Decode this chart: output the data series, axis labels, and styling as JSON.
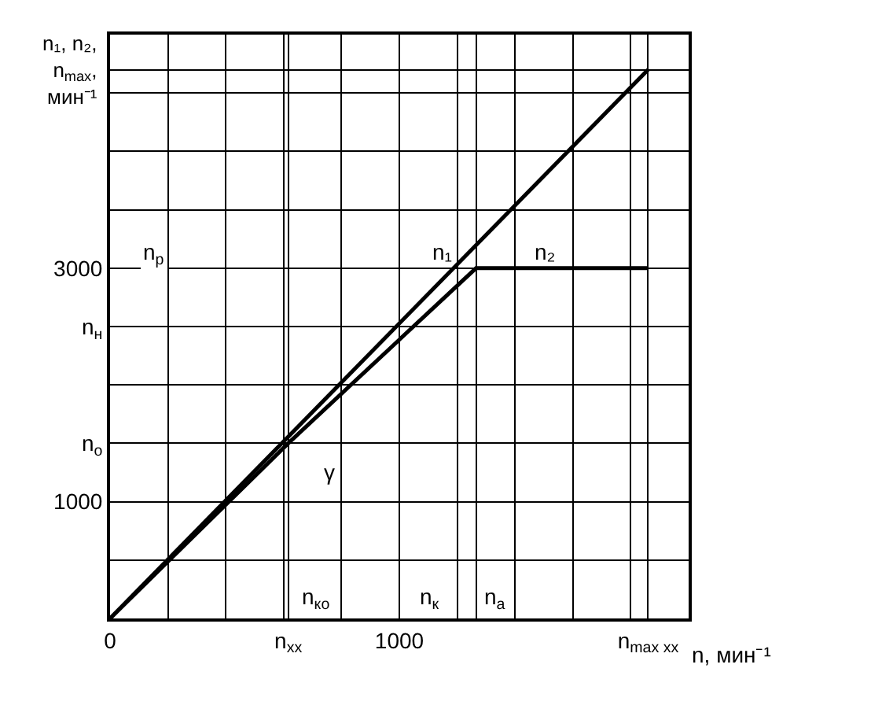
{
  "chart_data": {
    "type": "line",
    "xlabel": "n, мин⁻¹",
    "ylabel": "n₁, n₂, n$_{max}$, мин⁻¹",
    "x": [
      0,
      1860
    ],
    "series": [
      {
        "color": "#000000",
        "values": [
          0,
          4700
        ]
      },
      {
        "color": "#000000",
        "x": [
          0,
          616,
          1265,
          1860
        ],
        "values": [
          0,
          1500,
          3000,
          3000
        ]
      }
    ],
    "xlim": [
      0,
      2000
    ],
    "ylim": [
      0,
      5000
    ],
    "xticks": [
      0,
      {
        "value": 200,
        "label": null
      },
      {
        "value": 400,
        "label": null
      },
      {
        "value": 600,
        "label": null
      },
      {
        "value": 616,
        "label": "n$_{хх}$"
      },
      {
        "value": 800,
        "label": null
      },
      1000,
      {
        "value": 1200,
        "label": null
      },
      {
        "value": 1265,
        "label": null
      },
      {
        "value": 1400,
        "label": null
      },
      {
        "value": 1600,
        "label": null
      },
      {
        "value": 1800,
        "label": null
      },
      {
        "value": 1860,
        "label": "n$_{max хх}$"
      },
      {
        "value": 2000,
        "label": null
      }
    ],
    "yticks": [
      {
        "value": 500,
        "label": null
      },
      1000,
      {
        "value": 1500,
        "label": "n$_{о}$"
      },
      {
        "value": 2000,
        "label": null
      },
      {
        "value": 2500,
        "label": "n$_{н}$"
      },
      3000,
      {
        "value": 3500,
        "label": null
      },
      {
        "value": 4000,
        "label": null
      },
      {
        "value": 4500,
        "label": null
      },
      {
        "value": 4700,
        "label": null
      },
      {
        "value": 5000,
        "label": null
      }
    ],
    "annotations": [
      "n$_{р}$",
      {
        "text": "n₁",
        "x": 1150,
        "y": 3000
      },
      {
        "text": "n₂",
        "x": 1500,
        "y": 3000
      },
      "n$_{ко}$",
      "n$_{к}$",
      "n$_{а}$",
      "γ"
    ],
    "grid": true,
    "legend": false,
    "marker": "none",
    "line_style": "solid"
  }
}
